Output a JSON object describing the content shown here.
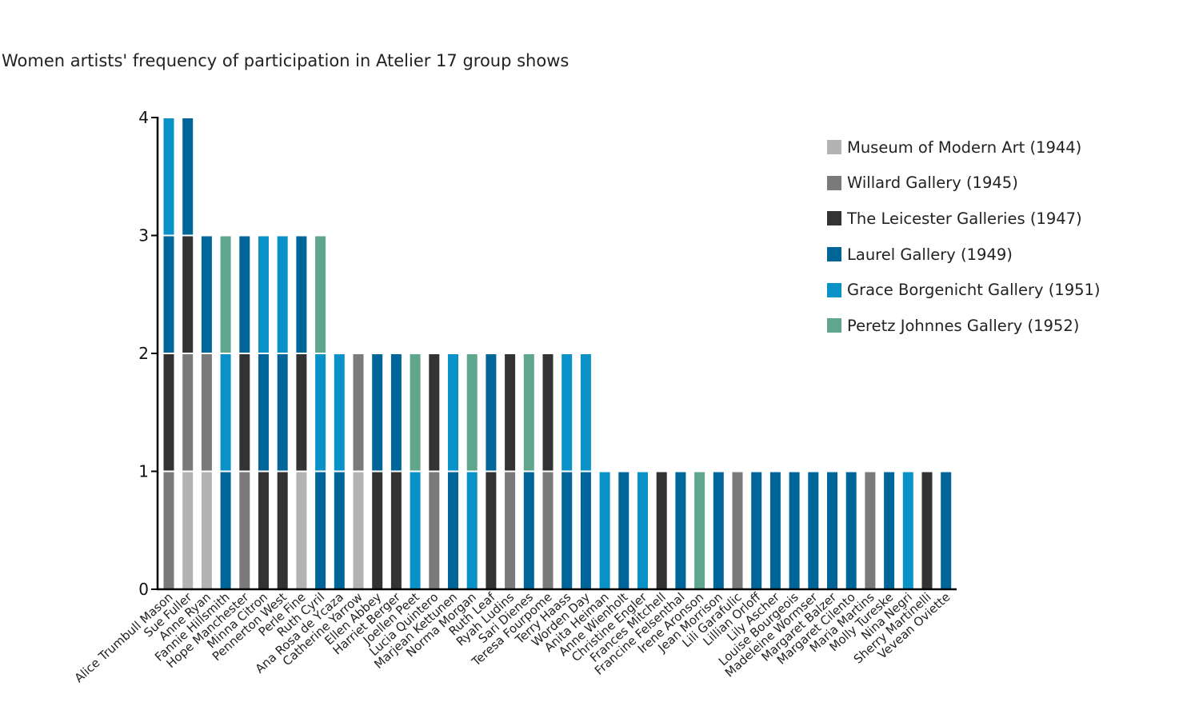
{
  "chart_data": {
    "type": "bar",
    "stacked": true,
    "title": "Women artists' frequency of participation in Atelier 17 group shows",
    "xlabel": "",
    "ylabel": "",
    "ylim": [
      0,
      4
    ],
    "yticks": [
      0,
      1,
      2,
      3,
      4
    ],
    "grid": false,
    "legend_position": "top-right",
    "shows": [
      {
        "name": "Museum of Modern Art (1944)",
        "color": "#b3b3b3"
      },
      {
        "name": "Willard Gallery (1945)",
        "color": "#7a7a7a"
      },
      {
        "name": "The Leicester Galleries (1947)",
        "color": "#333333"
      },
      {
        "name": "Laurel Gallery (1949)",
        "color": "#006699"
      },
      {
        "name": "Grace Borgenicht Gallery (1951)",
        "color": "#0892c8"
      },
      {
        "name": "Peretz Johnnes Gallery (1952)",
        "color": "#5fa68c"
      }
    ],
    "artists": [
      {
        "name": "Alice Trumbull Mason",
        "shows": [
          1,
          2,
          3,
          4
        ]
      },
      {
        "name": "Sue Fuller",
        "shows": [
          0,
          1,
          2,
          3
        ]
      },
      {
        "name": "Anne Ryan",
        "shows": [
          0,
          1,
          3
        ]
      },
      {
        "name": "Fannie Hillsmith",
        "shows": [
          3,
          4,
          5
        ]
      },
      {
        "name": "Hope Manchester",
        "shows": [
          1,
          2,
          3
        ]
      },
      {
        "name": "Minna Citron",
        "shows": [
          2,
          3,
          4
        ]
      },
      {
        "name": "Pennerton West",
        "shows": [
          2,
          3,
          4
        ]
      },
      {
        "name": "Perle Fine",
        "shows": [
          0,
          2,
          3
        ]
      },
      {
        "name": "Ruth Cyril",
        "shows": [
          3,
          4,
          5
        ]
      },
      {
        "name": "Ana Rosa de Ycaza",
        "shows": [
          3,
          4
        ]
      },
      {
        "name": "Catherine Yarrow",
        "shows": [
          0,
          1
        ]
      },
      {
        "name": "Ellen Abbey",
        "shows": [
          2,
          3
        ]
      },
      {
        "name": "Harriet Berger",
        "shows": [
          2,
          3
        ]
      },
      {
        "name": "Joellen Peet",
        "shows": [
          4,
          5
        ]
      },
      {
        "name": "Lucia Quintero",
        "shows": [
          1,
          2
        ]
      },
      {
        "name": "Marjean Kettunen",
        "shows": [
          3,
          4
        ]
      },
      {
        "name": "Norma Morgan",
        "shows": [
          4,
          5
        ]
      },
      {
        "name": "Ruth Leaf",
        "shows": [
          2,
          3
        ]
      },
      {
        "name": "Ryah Ludins",
        "shows": [
          1,
          2
        ]
      },
      {
        "name": "Sari Dienes",
        "shows": [
          3,
          5
        ]
      },
      {
        "name": "Teresa Fourpome",
        "shows": [
          1,
          2
        ]
      },
      {
        "name": "Terry Haass",
        "shows": [
          3,
          4
        ]
      },
      {
        "name": "Worden Day",
        "shows": [
          3,
          4
        ]
      },
      {
        "name": "Anita Heiman",
        "shows": [
          4
        ]
      },
      {
        "name": "Anne Wienholt",
        "shows": [
          3
        ]
      },
      {
        "name": "Christine Engler",
        "shows": [
          4
        ]
      },
      {
        "name": "Frances Mitchell",
        "shows": [
          2
        ]
      },
      {
        "name": "Francine Felsenthal",
        "shows": [
          3
        ]
      },
      {
        "name": "Irene Aronson",
        "shows": [
          5
        ]
      },
      {
        "name": "Jean Morrison",
        "shows": [
          3
        ]
      },
      {
        "name": "Lili Garafulic",
        "shows": [
          1
        ]
      },
      {
        "name": "Lillian Orloff",
        "shows": [
          3
        ]
      },
      {
        "name": "Lily Ascher",
        "shows": [
          3
        ]
      },
      {
        "name": "Louise Bourgeois",
        "shows": [
          3
        ]
      },
      {
        "name": "Madeleine Wormser",
        "shows": [
          3
        ]
      },
      {
        "name": "Margaret Balzer",
        "shows": [
          3
        ]
      },
      {
        "name": "Margaret Cilento",
        "shows": [
          3
        ]
      },
      {
        "name": "Maria Martins",
        "shows": [
          1
        ]
      },
      {
        "name": "Molly Tureske",
        "shows": [
          3
        ]
      },
      {
        "name": "Nina Negri",
        "shows": [
          4
        ]
      },
      {
        "name": "Sherry Martinelli",
        "shows": [
          2
        ]
      },
      {
        "name": "Vevean Oviette",
        "shows": [
          3
        ]
      }
    ]
  }
}
